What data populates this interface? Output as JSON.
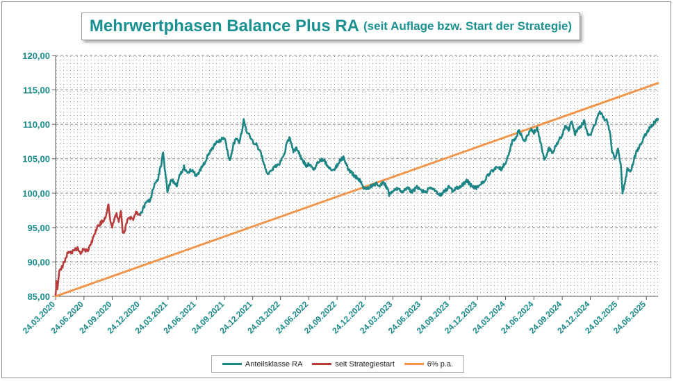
{
  "chart_data": {
    "type": "line",
    "title": "Mehrwertphasen Balance Plus RA",
    "subtitle": "(seit Auflage bzw. Start der Strategie)",
    "xlabel": "",
    "ylabel": "",
    "ylim": [
      85,
      120
    ],
    "y_ticks": [
      "85,00",
      "90,00",
      "95,00",
      "100,00",
      "105,00",
      "110,00",
      "115,00",
      "120,00"
    ],
    "x_ticks": [
      "24.03.2020",
      "24.06.2020",
      "24.09.2020",
      "24.12.2020",
      "24.03.2021",
      "24.06.2021",
      "24.09.2021",
      "24.12.2021",
      "24.03.2022",
      "24.06.2022",
      "24.09.2022",
      "24.12.2022",
      "24.03.2023",
      "24.06.2023",
      "24.09.2023",
      "24.12.2023",
      "24.03.2024",
      "24.06.2024",
      "24.09.2024",
      "24.12.2024",
      "24.03.2025",
      "24.06.2025"
    ],
    "x_range": [
      "2020-03-24",
      "2025-08-01"
    ],
    "grid": "dotted background",
    "legend_position": "bottom",
    "series": [
      {
        "name": "Anteilsklasse RA",
        "color": "#1e8585",
        "points": [
          [
            "2020-12-24",
            96.8
          ],
          [
            "2021-01-10",
            98.5
          ],
          [
            "2021-01-25",
            99.0
          ],
          [
            "2021-02-10",
            101.5
          ],
          [
            "2021-02-20",
            102.0
          ],
          [
            "2021-03-03",
            104.5
          ],
          [
            "2021-03-08",
            106.0
          ],
          [
            "2021-03-15",
            103.0
          ],
          [
            "2021-03-22",
            100.3
          ],
          [
            "2021-04-05",
            102.0
          ],
          [
            "2021-04-20",
            101.0
          ],
          [
            "2021-05-01",
            102.5
          ],
          [
            "2021-05-15",
            103.8
          ],
          [
            "2021-05-25",
            103.0
          ],
          [
            "2021-06-10",
            103.5
          ],
          [
            "2021-06-24",
            102.5
          ],
          [
            "2021-07-08",
            103.5
          ],
          [
            "2021-07-22",
            104.5
          ],
          [
            "2021-08-01",
            105.5
          ],
          [
            "2021-08-15",
            106.5
          ],
          [
            "2021-09-01",
            107.5
          ],
          [
            "2021-09-15",
            107.8
          ],
          [
            "2021-09-25",
            108.0
          ],
          [
            "2021-10-05",
            105.5
          ],
          [
            "2021-10-10",
            104.7
          ],
          [
            "2021-10-22",
            107.0
          ],
          [
            "2021-11-01",
            108.0
          ],
          [
            "2021-11-10",
            107.5
          ],
          [
            "2021-11-18",
            108.8
          ],
          [
            "2021-11-25",
            110.6
          ],
          [
            "2021-12-05",
            109.0
          ],
          [
            "2021-12-15",
            108.3
          ],
          [
            "2021-12-24",
            107.5
          ],
          [
            "2022-01-05",
            107.0
          ],
          [
            "2022-01-20",
            105.8
          ],
          [
            "2022-02-01",
            104.0
          ],
          [
            "2022-02-10",
            102.8
          ],
          [
            "2022-02-24",
            103.5
          ],
          [
            "2022-03-07",
            103.8
          ],
          [
            "2022-03-24",
            104.5
          ],
          [
            "2022-04-05",
            105.5
          ],
          [
            "2022-04-15",
            107.5
          ],
          [
            "2022-04-24",
            108.0
          ],
          [
            "2022-05-05",
            106.0
          ],
          [
            "2022-05-15",
            106.5
          ],
          [
            "2022-06-01",
            105.0
          ],
          [
            "2022-06-15",
            104.0
          ],
          [
            "2022-06-24",
            104.2
          ],
          [
            "2022-07-10",
            103.5
          ],
          [
            "2022-07-25",
            104.5
          ],
          [
            "2022-08-10",
            105.0
          ],
          [
            "2022-08-25",
            104.0
          ],
          [
            "2022-09-10",
            103.3
          ],
          [
            "2022-09-24",
            104.0
          ],
          [
            "2022-10-05",
            104.8
          ],
          [
            "2022-10-15",
            105.2
          ],
          [
            "2022-10-25",
            104.0
          ],
          [
            "2022-11-05",
            103.2
          ],
          [
            "2022-11-20",
            102.5
          ],
          [
            "2022-12-05",
            102.0
          ],
          [
            "2022-12-15",
            101.0
          ],
          [
            "2022-12-24",
            100.5
          ],
          [
            "2023-01-10",
            101.0
          ],
          [
            "2023-01-25",
            101.3
          ],
          [
            "2023-02-10",
            101.2
          ],
          [
            "2023-02-24",
            101.5
          ],
          [
            "2023-03-05",
            100.8
          ],
          [
            "2023-03-12",
            99.8
          ],
          [
            "2023-03-24",
            100.2
          ],
          [
            "2023-04-10",
            100.7
          ],
          [
            "2023-04-24",
            100.2
          ],
          [
            "2023-05-10",
            100.8
          ],
          [
            "2023-05-24",
            100.2
          ],
          [
            "2023-06-10",
            100.8
          ],
          [
            "2023-06-24",
            100.3
          ],
          [
            "2023-07-10",
            100.2
          ],
          [
            "2023-07-24",
            100.8
          ],
          [
            "2023-08-10",
            100.3
          ],
          [
            "2023-08-24",
            99.7
          ],
          [
            "2023-09-10",
            100.4
          ],
          [
            "2023-09-24",
            101.0
          ],
          [
            "2023-10-05",
            100.2
          ],
          [
            "2023-10-20",
            100.8
          ],
          [
            "2023-11-05",
            101.2
          ],
          [
            "2023-11-20",
            101.8
          ],
          [
            "2023-12-05",
            101.0
          ],
          [
            "2023-12-24",
            100.8
          ],
          [
            "2024-01-10",
            101.5
          ],
          [
            "2024-01-24",
            102.5
          ],
          [
            "2024-02-10",
            103.2
          ],
          [
            "2024-02-24",
            103.8
          ],
          [
            "2024-03-10",
            103.5
          ],
          [
            "2024-03-24",
            104.5
          ],
          [
            "2024-04-05",
            106.0
          ],
          [
            "2024-04-15",
            107.5
          ],
          [
            "2024-04-25",
            108.0
          ],
          [
            "2024-05-05",
            109.0
          ],
          [
            "2024-05-15",
            108.5
          ],
          [
            "2024-05-25",
            107.5
          ],
          [
            "2024-06-05",
            108.5
          ],
          [
            "2024-06-15",
            109.5
          ],
          [
            "2024-06-24",
            108.8
          ],
          [
            "2024-07-05",
            109.5
          ],
          [
            "2024-07-12",
            108.0
          ],
          [
            "2024-07-20",
            106.5
          ],
          [
            "2024-07-28",
            104.7
          ],
          [
            "2024-08-10",
            106.5
          ],
          [
            "2024-08-24",
            106.0
          ],
          [
            "2024-09-10",
            107.5
          ],
          [
            "2024-09-24",
            108.5
          ],
          [
            "2024-10-05",
            110.0
          ],
          [
            "2024-10-15",
            109.2
          ],
          [
            "2024-10-25",
            110.5
          ],
          [
            "2024-11-05",
            108.5
          ],
          [
            "2024-11-15",
            109.5
          ],
          [
            "2024-11-25",
            109.8
          ],
          [
            "2024-12-05",
            110.5
          ],
          [
            "2024-12-15",
            108.5
          ],
          [
            "2024-12-24",
            108.5
          ],
          [
            "2025-01-10",
            110.2
          ],
          [
            "2025-01-24",
            111.8
          ],
          [
            "2025-02-05",
            111.0
          ],
          [
            "2025-02-15",
            110.5
          ],
          [
            "2025-02-25",
            109.0
          ],
          [
            "2025-03-05",
            106.0
          ],
          [
            "2025-03-15",
            105.0
          ],
          [
            "2025-03-24",
            106.5
          ],
          [
            "2025-04-02",
            104.0
          ],
          [
            "2025-04-08",
            100.1
          ],
          [
            "2025-04-15",
            101.5
          ],
          [
            "2025-04-24",
            103.5
          ],
          [
            "2025-05-05",
            103.2
          ],
          [
            "2025-05-15",
            105.0
          ],
          [
            "2025-05-25",
            106.2
          ],
          [
            "2025-06-05",
            107.0
          ],
          [
            "2025-06-15",
            108.0
          ],
          [
            "2025-06-24",
            108.8
          ],
          [
            "2025-07-05",
            109.5
          ],
          [
            "2025-07-15",
            110.0
          ],
          [
            "2025-07-25",
            110.5
          ],
          [
            "2025-08-01",
            110.8
          ]
        ]
      },
      {
        "name": "seit Strategiestart",
        "color": "#b83c3c",
        "points": [
          [
            "2020-03-24",
            85.2
          ],
          [
            "2020-03-27",
            87.3
          ],
          [
            "2020-03-30",
            86.2
          ],
          [
            "2020-04-05",
            88.5
          ],
          [
            "2020-04-15",
            89.3
          ],
          [
            "2020-04-25",
            90.5
          ],
          [
            "2020-05-05",
            91.5
          ],
          [
            "2020-05-15",
            91.3
          ],
          [
            "2020-05-25",
            91.8
          ],
          [
            "2020-06-05",
            92.0
          ],
          [
            "2020-06-15",
            91.2
          ],
          [
            "2020-06-24",
            92.0
          ],
          [
            "2020-07-05",
            91.5
          ],
          [
            "2020-07-15",
            92.5
          ],
          [
            "2020-07-25",
            93.5
          ],
          [
            "2020-08-05",
            95.0
          ],
          [
            "2020-08-15",
            95.5
          ],
          [
            "2020-08-25",
            96.0
          ],
          [
            "2020-09-05",
            96.8
          ],
          [
            "2020-09-12",
            98.5
          ],
          [
            "2020-09-18",
            96.0
          ],
          [
            "2020-09-24",
            95.0
          ],
          [
            "2020-10-01",
            96.5
          ],
          [
            "2020-10-08",
            97.0
          ],
          [
            "2020-10-15",
            96.0
          ],
          [
            "2020-10-22",
            97.5
          ],
          [
            "2020-10-28",
            94.5
          ],
          [
            "2020-11-01",
            94.0
          ],
          [
            "2020-11-10",
            95.8
          ],
          [
            "2020-11-20",
            96.5
          ],
          [
            "2020-12-01",
            96.2
          ],
          [
            "2020-12-10",
            97.3
          ],
          [
            "2020-12-24",
            96.8
          ]
        ]
      },
      {
        "name": "6% p.a.",
        "color": "#f0954a",
        "points": [
          [
            "2020-03-24",
            85.0
          ],
          [
            "2025-08-01",
            116.0
          ]
        ]
      }
    ]
  }
}
